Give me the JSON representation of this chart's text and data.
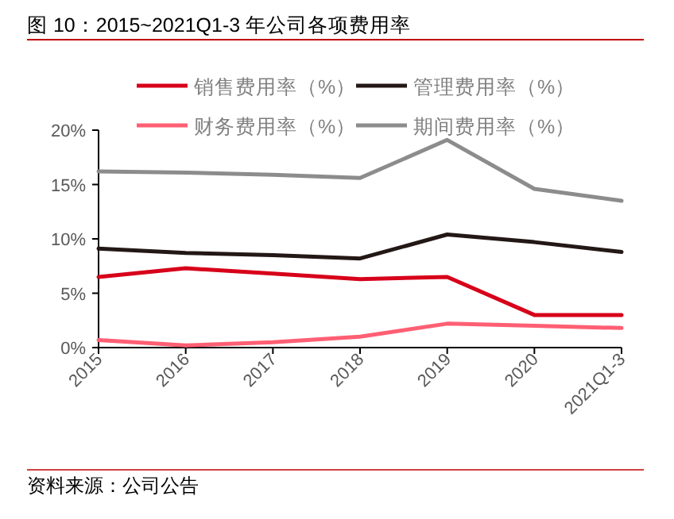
{
  "chart_data": {
    "type": "line",
    "title": "图 10：2015~2021Q1-3 年公司各项费用率",
    "annotations": [
      "资料来源：公司公告"
    ],
    "categories": [
      "2015",
      "2016",
      "2017",
      "2018",
      "2019",
      "2020",
      "2021Q1-3"
    ],
    "series": [
      {
        "name": "销售费用率（%）",
        "color": "#d7001a",
        "values": [
          6.5,
          7.3,
          6.8,
          6.3,
          6.5,
          3.0,
          3.0
        ]
      },
      {
        "name": "管理费用率（%）",
        "color": "#231815",
        "values": [
          9.1,
          8.7,
          8.5,
          8.2,
          10.4,
          9.7,
          8.8
        ]
      },
      {
        "name": "财务费用率（%）",
        "color": "#ff5f73",
        "values": [
          0.7,
          0.2,
          0.5,
          1.0,
          2.2,
          2.0,
          1.8
        ]
      },
      {
        "name": "期间费用率（%）",
        "color": "#8c8c8c",
        "values": [
          16.2,
          16.1,
          15.9,
          15.6,
          19.1,
          14.6,
          13.5
        ]
      }
    ],
    "ylim": [
      0,
      20
    ],
    "yticks": [
      {
        "value": 0,
        "label": "0%"
      },
      {
        "value": 5,
        "label": "5%"
      },
      {
        "value": 10,
        "label": "10%"
      },
      {
        "value": 15,
        "label": "15%"
      },
      {
        "value": 20,
        "label": "20%"
      }
    ],
    "legend": "top",
    "grid": false,
    "marker": "none",
    "line_style": "solid"
  }
}
